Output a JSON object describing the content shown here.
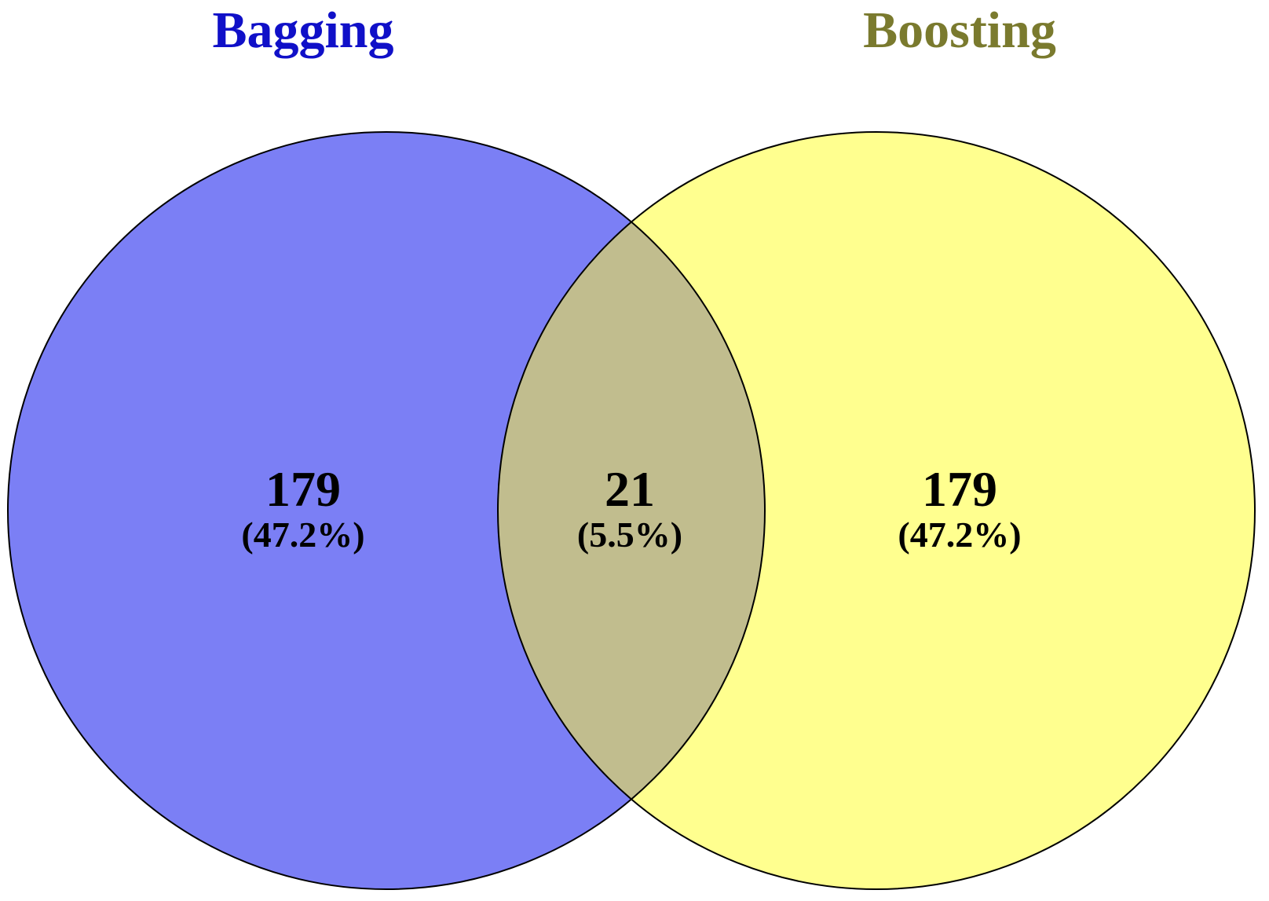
{
  "venn": {
    "sets": [
      {
        "name": "Bagging",
        "color": "#1010c8",
        "fill": "#7b7ff5"
      },
      {
        "name": "Boosting",
        "color": "#7a7a2e",
        "fill": "#ffff8f"
      }
    ],
    "intersection_fill": "#c1bd8e",
    "regions": {
      "bagging_only": {
        "count": "179",
        "percent": "(47.2%)"
      },
      "both": {
        "count": "21",
        "percent": "(5.5%)"
      },
      "boosting_only": {
        "count": "179",
        "percent": "(47.2%)"
      }
    }
  }
}
